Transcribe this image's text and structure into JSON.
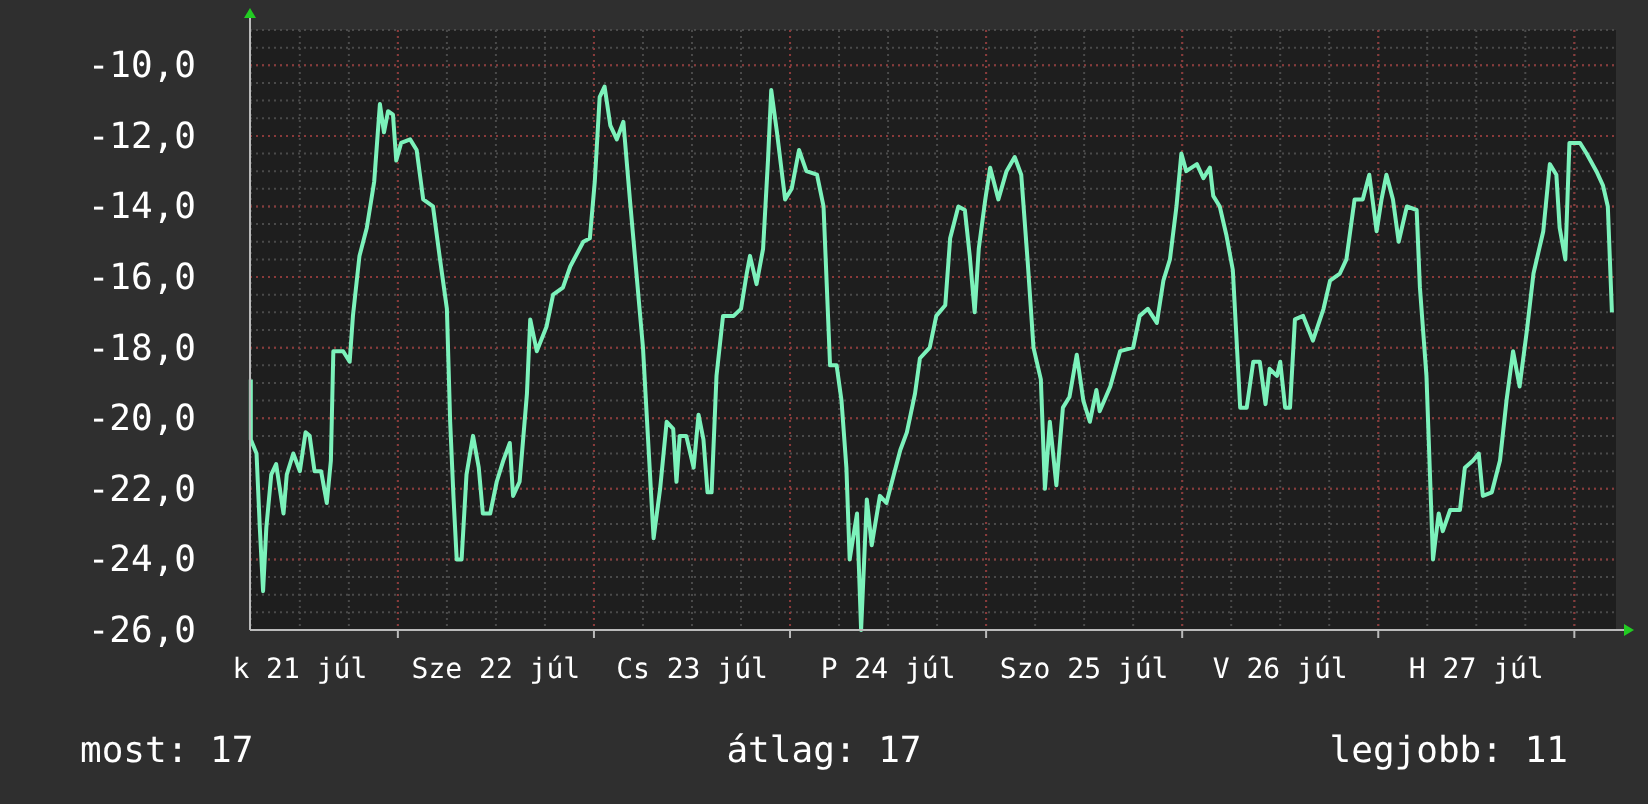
{
  "chart_data": {
    "type": "line",
    "x": [
      "--07-21T06:00",
      "--07-21T06:00",
      "--07-21T06:42",
      "--07-21T07:06",
      "--07-21T07:30",
      "--07-21T07:54",
      "--07-21T08:30",
      "--07-21T09:06",
      "--07-21T10:00",
      "--07-21T10:24",
      "--07-21T11:12",
      "--07-21T12:00",
      "--07-21T12:42",
      "--07-21T13:12",
      "--07-21T13:48",
      "--07-21T14:36",
      "--07-21T15:18",
      "--07-21T15:48",
      "--07-21T16:06",
      "--07-21T17:18",
      "--07-21T18:06",
      "--07-21T18:30",
      "--07-21T19:18",
      "--07-21T20:12",
      "--07-21T21:06",
      "--07-21T21:48",
      "--07-21T22:18",
      "--07-21T22:48",
      "--07-21T23:24",
      "--07-21T23:48",
      "--07-22T00:24",
      "--07-22T01:30",
      "--07-22T02:18",
      "--07-22T03:06",
      "--07-22T04:18",
      "--07-22T05:06",
      "--07-22T06:00",
      "--07-22T06:24",
      "--07-22T06:48",
      "--07-22T07:12",
      "--07-22T07:48",
      "--07-22T08:24",
      "--07-22T09:12",
      "--07-22T09:54",
      "--07-22T10:24",
      "--07-22T11:18",
      "--07-22T12:06",
      "--07-22T12:54",
      "--07-22T13:42",
      "--07-22T14:06",
      "--07-22T14:54",
      "--07-22T15:48",
      "--07-22T16:12",
      "--07-22T17:00",
      "--07-22T18:12",
      "--07-22T19:00",
      "--07-22T20:12",
      "--07-22T21:06",
      "--07-22T22:42",
      "--07-22T23:30",
      "--07-23T00:06",
      "--07-23T00:42",
      "--07-23T01:18",
      "--07-23T02:00",
      "--07-23T02:48",
      "--07-23T03:36",
      "--07-23T04:24",
      "--07-23T05:12",
      "--07-23T06:00",
      "--07-23T06:36",
      "--07-23T07:18",
      "--07-23T08:06",
      "--07-23T08:54",
      "--07-23T09:42",
      "--07-23T10:06",
      "--07-23T10:30",
      "--07-23T11:18",
      "--07-23T12:12",
      "--07-23T12:48",
      "--07-23T13:24",
      "--07-23T13:54",
      "--07-23T14:24",
      "--07-23T15:00",
      "--07-23T15:48",
      "--07-23T17:06",
      "--07-23T18:00",
      "--07-23T18:42",
      "--07-23T19:06",
      "--07-23T19:54",
      "--07-23T20:42",
      "--07-23T21:18",
      "--07-23T21:42",
      "--07-23T22:24",
      "--07-23T23:24",
      "--07-24T00:12",
      "--07-24T01:06",
      "--07-24T02:00",
      "--07-24T03:18",
      "--07-24T04:06",
      "--07-24T04:54",
      "--07-24T05:42",
      "--07-24T06:18",
      "--07-24T06:54",
      "--07-24T07:18",
      "--07-24T08:12",
      "--07-24T08:42",
      "--07-24T09:24",
      "--07-24T10:00",
      "--07-24T11:00",
      "--07-24T11:48",
      "--07-24T12:42",
      "--07-24T13:30",
      "--07-24T14:18",
      "--07-24T15:18",
      "--07-24T15:54",
      "--07-24T17:06",
      "--07-24T17:54",
      "--07-24T19:00",
      "--07-24T19:36",
      "--07-24T20:36",
      "--07-24T21:24",
      "--07-24T22:00",
      "--07-24T22:36",
      "--07-24T23:06",
      "--07-24T23:54",
      "--07-25T00:30",
      "--07-25T01:30",
      "--07-25T02:30",
      "--07-25T03:30",
      "--07-25T04:18",
      "--07-25T05:06",
      "--07-25T05:48",
      "--07-25T06:42",
      "--07-25T07:12",
      "--07-25T07:48",
      "--07-25T08:36",
      "--07-25T09:24",
      "--07-25T10:12",
      "--07-25T11:06",
      "--07-25T11:54",
      "--07-25T12:42",
      "--07-25T13:30",
      "--07-25T13:54",
      "--07-25T15:12",
      "--07-25T16:24",
      "--07-25T18:00",
      "--07-25T18:48",
      "--07-25T19:48",
      "--07-25T20:54",
      "--07-25T21:42",
      "--07-25T22:30",
      "--07-25T23:18",
      "--07-25T23:54",
      "--07-26T00:30",
      "--07-26T01:48",
      "--07-26T02:36",
      "--07-26T03:24",
      "--07-26T03:48",
      "--07-26T04:36",
      "--07-26T05:24",
      "--07-26T06:12",
      "--07-26T07:06",
      "--07-26T07:54",
      "--07-26T08:42",
      "--07-26T09:30",
      "--07-26T10:12",
      "--07-26T10:42",
      "--07-26T11:36",
      "--07-26T12:00",
      "--07-26T12:36",
      "--07-26T13:12",
      "--07-26T13:48",
      "--07-26T14:48",
      "--07-26T16:00",
      "--07-26T17:18",
      "--07-26T18:06",
      "--07-26T19:18",
      "--07-26T20:06",
      "--07-26T21:06",
      "--07-26T22:06",
      "--07-26T22:54",
      "--07-26T23:48",
      "--07-27T00:24",
      "--07-27T01:00",
      "--07-27T01:48",
      "--07-27T02:30",
      "--07-27T03:30",
      "--07-27T04:42",
      "--07-27T05:06",
      "--07-27T05:54",
      "--07-27T06:42",
      "--07-27T07:24",
      "--07-27T07:54",
      "--07-27T08:48",
      "--07-27T10:00",
      "--07-27T10:36",
      "--07-27T11:36",
      "--07-27T12:18",
      "--07-27T12:48",
      "--07-27T13:54",
      "--07-27T14:54",
      "--07-27T15:42",
      "--07-27T16:30",
      "--07-27T17:18",
      "--07-27T18:12",
      "--07-27T19:00",
      "--07-27T20:12",
      "--07-27T21:00",
      "--07-27T21:48",
      "--07-27T22:12",
      "--07-27T22:54",
      "--07-27T23:24",
      "--07-28T00:42",
      "--07-28T01:30",
      "--07-28T02:42",
      "--07-28T03:30",
      "--07-28T04:06",
      "--07-28T04:36"
    ],
    "series": [
      {
        "color": "#7cf2bb",
        "values": [
          -18.9,
          -20.6,
          -21,
          -23.1,
          -24.9,
          -23.1,
          -21.6,
          -21.3,
          -22.7,
          -21.6,
          -21,
          -21.5,
          -20.4,
          -20.5,
          -21.5,
          -21.5,
          -22.4,
          -21.2,
          -18.1,
          -18.1,
          -18.4,
          -17.1,
          -15.4,
          -14.6,
          -13.3,
          -11.1,
          -11.9,
          -11.3,
          -11.4,
          -12.7,
          -12.2,
          -12.1,
          -12.4,
          -13.8,
          -14,
          -15.4,
          -16.9,
          -20.1,
          -22.2,
          -24,
          -24,
          -21.6,
          -20.5,
          -21.4,
          -22.7,
          -22.7,
          -21.8,
          -21.2,
          -20.7,
          -22.2,
          -21.8,
          -19.3,
          -17.2,
          -18.1,
          -17.4,
          -16.5,
          -16.3,
          -15.7,
          -15,
          -14.9,
          -13.3,
          -10.9,
          -10.6,
          -11.7,
          -12.1,
          -11.6,
          -13.8,
          -15.9,
          -18,
          -20.5,
          -23.4,
          -22,
          -20.1,
          -20.3,
          -21.8,
          -20.5,
          -20.5,
          -21.4,
          -19.9,
          -20.6,
          -22.1,
          -22.1,
          -18.8,
          -17.1,
          -17.1,
          -16.9,
          -15.9,
          -15.4,
          -16.2,
          -15.2,
          -12.7,
          -10.7,
          -11.9,
          -13.8,
          -13.5,
          -12.4,
          -13,
          -13.1,
          -14,
          -18.5,
          -18.5,
          -19.5,
          -21.4,
          -24,
          -22.7,
          -26,
          -22.3,
          -23.6,
          -22.2,
          -22.4,
          -21.6,
          -20.9,
          -20.4,
          -19.3,
          -18.3,
          -18,
          -17.1,
          -16.8,
          -14.9,
          -14,
          -14.1,
          -15.4,
          -17,
          -15.2,
          -13.8,
          -12.9,
          -13.8,
          -13,
          -12.6,
          -13.1,
          -15.6,
          -18,
          -18.9,
          -22,
          -20.1,
          -21.9,
          -19.7,
          -19.4,
          -18.2,
          -19.5,
          -20.1,
          -19.2,
          -19.8,
          -19.1,
          -18.1,
          -18,
          -17.1,
          -16.9,
          -17.3,
          -16.1,
          -15.5,
          -14,
          -12.5,
          -13,
          -12.8,
          -13.2,
          -12.9,
          -13.7,
          -14,
          -14.8,
          -15.8,
          -19.7,
          -19.7,
          -18.4,
          -18.4,
          -19.6,
          -18.6,
          -18.8,
          -18.4,
          -19.7,
          -19.7,
          -17.2,
          -17.1,
          -17.8,
          -16.9,
          -16.1,
          -15.9,
          -15.5,
          -13.8,
          -13.8,
          -13.1,
          -14.7,
          -13.8,
          -13.1,
          -13.8,
          -15,
          -14,
          -14.1,
          -16.3,
          -18.8,
          -24,
          -22.7,
          -23.2,
          -22.6,
          -22.6,
          -21.4,
          -21.2,
          -21,
          -22.2,
          -22.1,
          -21.2,
          -19.5,
          -18.1,
          -19.1,
          -17.5,
          -15.9,
          -14.7,
          -12.8,
          -13.1,
          -14.6,
          -15.5,
          -12.2,
          -12.2,
          -12.5,
          -13,
          -13.4,
          -14,
          -17
        ]
      }
    ],
    "xlim": [
      "--07-21T05:54",
      "--07-28T05:06"
    ],
    "xticks": [
      {
        "value": "--07-21T12:00",
        "label": "k 21 júl"
      },
      {
        "value": "--07-22",
        "label": null
      },
      {
        "value": "--07-22T12:00",
        "label": "Sze 22 júl"
      },
      {
        "value": "--07-23",
        "label": null
      },
      {
        "value": "--07-23T12:00",
        "label": "Cs 23 júl"
      },
      {
        "value": "--07-24",
        "label": null
      },
      {
        "value": "--07-24T12:00",
        "label": "P 24 júl"
      },
      {
        "value": "--07-25",
        "label": null
      },
      {
        "value": "--07-25T12:00",
        "label": "Szo 25 júl"
      },
      {
        "value": "--07-26",
        "label": null
      },
      {
        "value": "--07-26T12:00",
        "label": "V 26 júl"
      },
      {
        "value": "--07-27",
        "label": null
      },
      {
        "value": "--07-27T12:00",
        "label": "H 27 júl"
      },
      {
        "value": "--07-28",
        "label": null
      }
    ],
    "ylim": [
      -26,
      -9
    ],
    "yticks": [
      {
        "value": -26,
        "label": "-26,0"
      },
      {
        "value": -24,
        "label": "-24,0"
      },
      {
        "value": -22,
        "label": "-22,0"
      },
      {
        "value": -20,
        "label": "-20,0"
      },
      {
        "value": -18,
        "label": "-18,0"
      },
      {
        "value": -16,
        "label": "-16,0"
      },
      {
        "value": -14,
        "label": "-14,0"
      },
      {
        "value": -12,
        "label": "-12,0"
      },
      {
        "value": -10,
        "label": "-10,0"
      }
    ],
    "grid": true,
    "annotations": [
      "most: 17",
      "átlag: 17",
      "legjobb: 11"
    ]
  }
}
